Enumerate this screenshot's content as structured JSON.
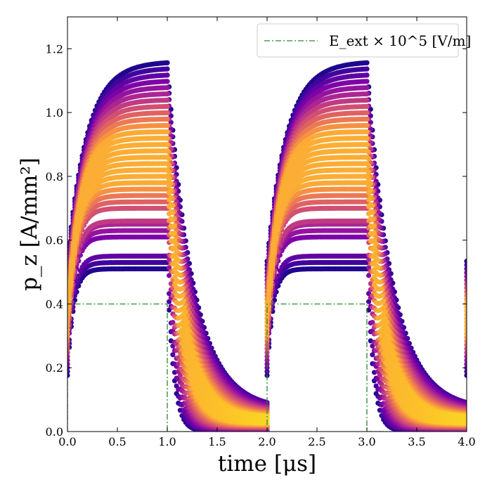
{
  "chart_data": {
    "type": "scatter",
    "title": "",
    "xlabel": "time [μs]",
    "ylabel": "p_z [A/mm²]",
    "xlim": [
      0.0,
      4.0
    ],
    "ylim": [
      0.0,
      1.3
    ],
    "xticks": [
      0.0,
      0.5,
      1.0,
      1.5,
      2.0,
      2.5,
      3.0,
      3.5,
      4.0
    ],
    "xtick_labels": [
      "0.0",
      "0.5",
      "1.0",
      "1.5",
      "2.0",
      "2.5",
      "3.0",
      "3.5",
      "4.0"
    ],
    "yticks": [
      0.0,
      0.2,
      0.4,
      0.6,
      0.8,
      1.0,
      1.2
    ],
    "ytick_labels": [
      "0.0",
      "0.2",
      "0.4",
      "0.6",
      "0.8",
      "1.0",
      "1.2"
    ],
    "grid": false,
    "legend": {
      "position": "top-right",
      "entries": [
        {
          "label": "E_ext × 10^5 [V/m]",
          "color": "#2a8a2a",
          "style": "dash-dot"
        }
      ]
    },
    "series": [
      {
        "name": "E_ext × 10^5 [V/m]",
        "kind": "line",
        "color": "#2a8a2a",
        "points": [
          [
            0.0,
            0.0
          ],
          [
            0.0,
            0.4
          ],
          [
            1.0,
            0.4
          ],
          [
            1.0,
            0.0
          ],
          [
            2.0,
            0.0
          ],
          [
            2.0,
            0.4
          ],
          [
            3.0,
            0.4
          ],
          [
            3.0,
            0.0
          ],
          [
            4.0,
            0.0
          ]
        ]
      },
      {
        "name": "p_z ensemble",
        "kind": "hexbin-scatter",
        "colormap": "plasma",
        "pulse_period_us": 2.0,
        "pulse_on_us": 1.0,
        "saturation_levels": [
          0.51,
          0.53,
          0.55,
          0.61,
          0.63,
          0.65,
          0.66,
          0.7,
          0.72,
          0.74,
          0.76,
          0.78,
          0.8,
          0.82,
          0.84,
          0.86,
          0.88,
          0.9,
          0.92,
          0.94,
          0.96,
          0.98,
          1.0,
          1.02,
          1.04,
          1.06,
          1.08,
          1.1,
          1.12,
          1.14,
          1.16
        ],
        "initial_values": [
          0.17,
          0.54
        ],
        "rise_tau_us": [
          0.06,
          0.2
        ],
        "decay_tau_us": [
          0.06,
          0.26
        ],
        "tail_levels": [
          0.0,
          0.07
        ]
      }
    ]
  }
}
